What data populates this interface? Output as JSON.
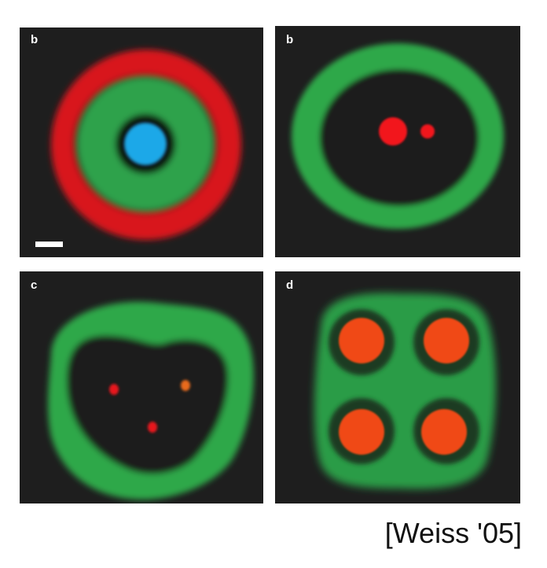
{
  "panels": [
    {
      "id": "a",
      "label": "b"
    },
    {
      "id": "b",
      "label": "b"
    },
    {
      "id": "c",
      "label": "c"
    },
    {
      "id": "d",
      "label": "d"
    }
  ],
  "colors": {
    "background": "#1e1e1e",
    "red_ring": "#e0161f",
    "green": "#2ea84a",
    "blue": "#1ea7e6",
    "orange_red": "#f04a14"
  },
  "citation": "[Weiss '05]"
}
